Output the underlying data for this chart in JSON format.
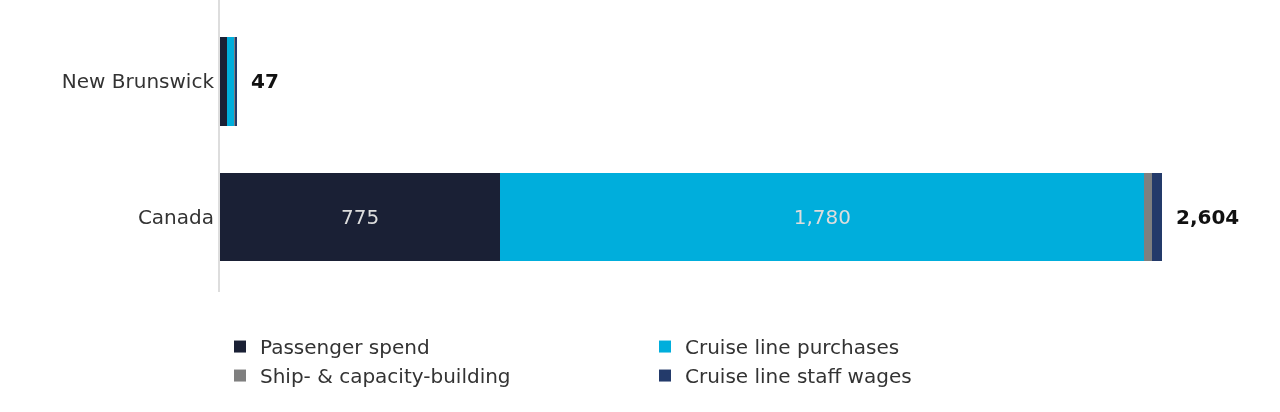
{
  "chart_data": {
    "type": "bar",
    "orientation": "horizontal",
    "stacked": true,
    "categories": [
      "New Brunswick",
      "Canada"
    ],
    "series": [
      {
        "name": "Passenger spend",
        "color": "#1a2035",
        "values": [
          19,
          775
        ],
        "value_labels": [
          null,
          "775"
        ]
      },
      {
        "name": "Cruise line purchases",
        "color": "#00aedc",
        "values": [
          22,
          1780
        ],
        "value_labels": [
          null,
          "1,780"
        ]
      },
      {
        "name": "Ship- & capacity-building",
        "color": "#7f7f7f",
        "values": [
          1,
          22
        ],
        "value_labels": [
          null,
          null
        ]
      },
      {
        "name": "Cruise line staff wages",
        "color": "#233a6a",
        "values": [
          5,
          27
        ],
        "value_labels": [
          null,
          null
        ]
      }
    ],
    "totals": [
      "47",
      "2,604"
    ],
    "legend": "bottom",
    "tick_labels": "y"
  }
}
